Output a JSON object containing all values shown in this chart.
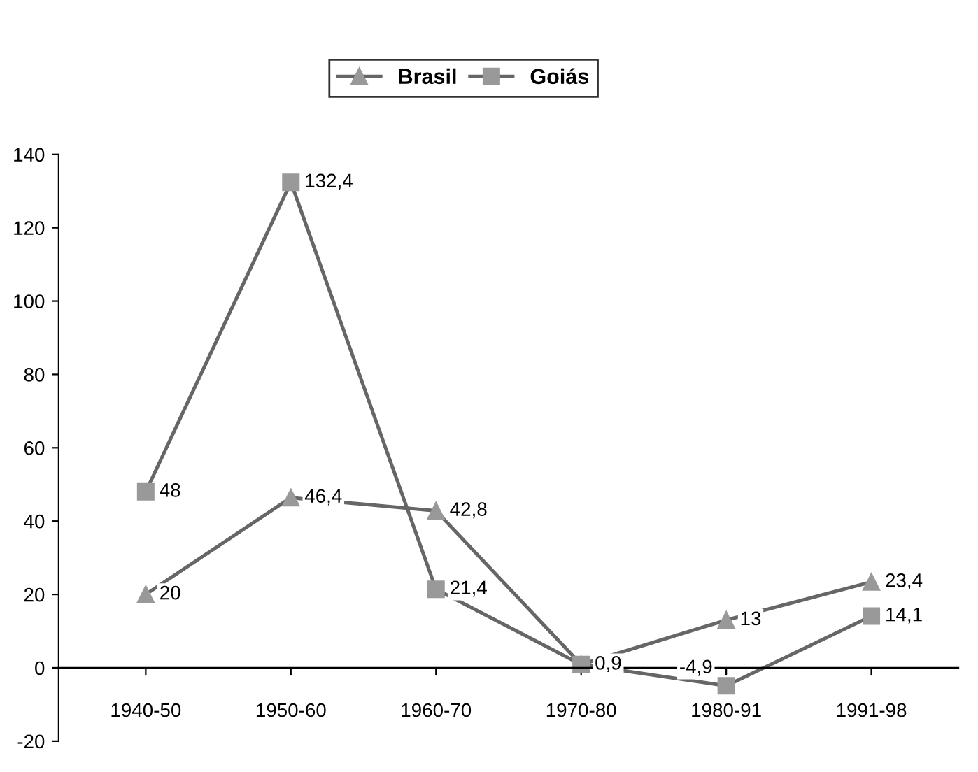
{
  "chart_data": {
    "type": "line",
    "categories": [
      "1940-50",
      "1950-60",
      "1960-70",
      "1970-80",
      "1980-91",
      "1991-98"
    ],
    "series": [
      {
        "name": "Brasil",
        "color": "#666666",
        "marker": "triangle",
        "values": [
          20,
          46.4,
          42.8,
          0.9,
          13,
          23.4
        ],
        "value_labels": [
          "20",
          "46,4",
          "42,8",
          null,
          "13",
          "23,4"
        ]
      },
      {
        "name": "Goiás",
        "color": "#666666",
        "marker": "square",
        "values": [
          48,
          132.4,
          21.4,
          0.9,
          -4.9,
          14.1
        ],
        "value_labels": [
          "48",
          "132,4",
          "21,4",
          "0,9",
          "-4,9",
          "14,1"
        ]
      }
    ],
    "ylim": [
      -20,
      140
    ],
    "yticks": [
      -20,
      0,
      20,
      40,
      60,
      80,
      100,
      120,
      140
    ],
    "grid": false,
    "legend": "top"
  }
}
